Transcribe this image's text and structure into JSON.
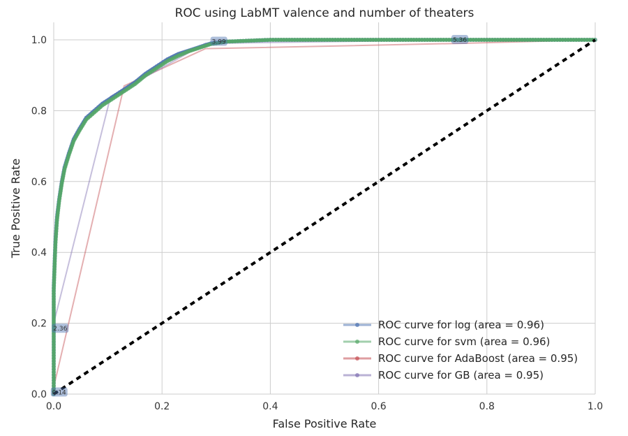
{
  "chart_data": {
    "type": "line",
    "title": "ROC using LabMT valence and number of theaters",
    "xlabel": "False Positive Rate",
    "ylabel": "True Positive Rate",
    "xlim": [
      0.0,
      1.0
    ],
    "ylim": [
      0.0,
      1.0
    ],
    "xticks": [
      "0.0",
      "0.2",
      "0.4",
      "0.6",
      "0.8",
      "1.0"
    ],
    "yticks": [
      "0.0",
      "0.2",
      "0.4",
      "0.6",
      "0.8",
      "1.0"
    ],
    "grid": true,
    "legend_position": "lower-right",
    "series": [
      {
        "name": "ROC curve for log (area = 0.96)",
        "color": "#4c72b0",
        "style": "dense-markers",
        "x": [
          0.0,
          0.0,
          0.003,
          0.006,
          0.01,
          0.015,
          0.02,
          0.028,
          0.037,
          0.048,
          0.06,
          0.075,
          0.09,
          0.11,
          0.13,
          0.15,
          0.17,
          0.19,
          0.21,
          0.23,
          0.25,
          0.27,
          0.29,
          0.32,
          0.4,
          0.5,
          0.6,
          0.75,
          0.9,
          1.0
        ],
        "y": [
          0.0,
          0.3,
          0.43,
          0.5,
          0.55,
          0.6,
          0.64,
          0.68,
          0.72,
          0.75,
          0.78,
          0.8,
          0.82,
          0.84,
          0.86,
          0.88,
          0.905,
          0.925,
          0.945,
          0.96,
          0.97,
          0.98,
          0.99,
          0.995,
          1.0,
          1.0,
          1.0,
          1.0,
          1.0,
          1.0
        ]
      },
      {
        "name": "ROC curve for svm (area = 0.96)",
        "color": "#55a868",
        "style": "dense-markers",
        "x": [
          0.0,
          0.0,
          0.003,
          0.006,
          0.01,
          0.015,
          0.02,
          0.028,
          0.037,
          0.048,
          0.06,
          0.075,
          0.09,
          0.11,
          0.13,
          0.15,
          0.17,
          0.19,
          0.21,
          0.23,
          0.25,
          0.27,
          0.29,
          0.32,
          0.4,
          0.5,
          0.6,
          0.75,
          0.9,
          1.0
        ],
        "y": [
          0.0,
          0.29,
          0.42,
          0.49,
          0.545,
          0.595,
          0.635,
          0.675,
          0.715,
          0.745,
          0.775,
          0.795,
          0.815,
          0.835,
          0.855,
          0.875,
          0.9,
          0.92,
          0.94,
          0.955,
          0.968,
          0.978,
          0.988,
          0.995,
          1.0,
          1.0,
          1.0,
          1.0,
          1.0,
          1.0
        ]
      },
      {
        "name": "ROC curve for AdaBoost (area = 0.95)",
        "color": "#c44e52",
        "style": "line",
        "x": [
          0.0,
          0.0,
          0.13,
          0.28,
          0.75,
          1.0
        ],
        "y": [
          0.0,
          0.02,
          0.87,
          0.975,
          0.99,
          1.0
        ]
      },
      {
        "name": "ROC curve for GB (area = 0.95)",
        "color": "#8172b2",
        "style": "line",
        "x": [
          0.0,
          0.0,
          0.105,
          0.28,
          0.75,
          1.0
        ],
        "y": [
          0.0,
          0.2,
          0.84,
          0.99,
          1.0,
          1.0
        ]
      }
    ],
    "diagonal": {
      "x": [
        0.0,
        1.0
      ],
      "y": [
        0.0,
        1.0
      ],
      "color": "#000000",
      "style": "dashed"
    },
    "annotations": [
      {
        "text": "2.36",
        "x": 0.012,
        "y": 0.185
      },
      {
        "text": "3.99",
        "x": 0.305,
        "y": 0.995
      },
      {
        "text": "5.36",
        "x": 0.75,
        "y": 1.0
      },
      {
        "text": "0.14",
        "x": 0.01,
        "y": 0.005
      }
    ]
  }
}
